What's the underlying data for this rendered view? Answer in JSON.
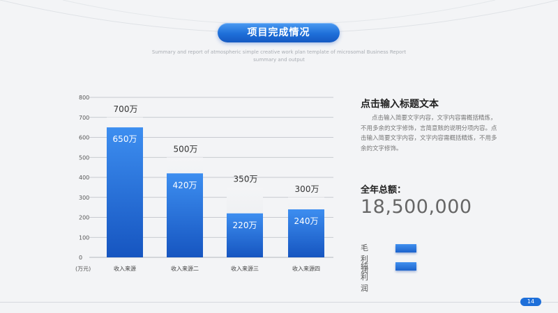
{
  "header": {
    "title": "项目完成情况",
    "subtitle": "Summary and report of atmospheric simple creative work plan template of microsomal Business Report summary and output"
  },
  "chart_data": {
    "type": "bar",
    "categories": [
      "收入来源",
      "收入来源二",
      "收入来源三",
      "收入来源四"
    ],
    "series": [
      {
        "name": "",
        "role": "target",
        "values": [
          700,
          500,
          350,
          300
        ],
        "labels": [
          "700万",
          "500万",
          "350万",
          "300万"
        ]
      },
      {
        "name": "",
        "role": "actual",
        "values": [
          650,
          420,
          220,
          240
        ],
        "labels": [
          "650万",
          "420万",
          "220万",
          "240万"
        ]
      }
    ],
    "yticks": [
      0,
      100,
      200,
      300,
      400,
      500,
      600,
      700,
      800
    ],
    "ylim": [
      0,
      800
    ],
    "yunit": "(万元)",
    "grid": true
  },
  "side": {
    "title": "点击输入标题文本",
    "body": "点击输入简要文字内容，文字内容需概括精炼，不用多余的文字修饰，言简意赅的说明分项内容。点击输入简要文字内容，文字内容需概括精炼，不用多余的文字修饰。",
    "total_label": "全年总额：",
    "total_value": "18,500,000",
    "legend": [
      {
        "label": "毛利润"
      },
      {
        "label": "纯利润"
      }
    ]
  },
  "page_number": "14",
  "colors": {
    "accent": "#1e6fd9",
    "bar_top": "#3d8ef0",
    "bar_bottom": "#1655c0",
    "target_bar": "#ebedf0"
  }
}
